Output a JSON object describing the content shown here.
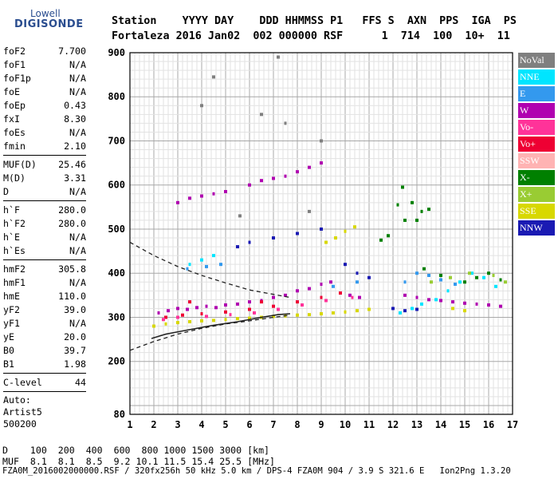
{
  "logo": {
    "line1": "Lowell",
    "line2": "DIGISONDE"
  },
  "header": {
    "line1": "Station    YYYY DAY    DDD HHMMSS P1   FFS S  AXN  PPS  IGA  PS",
    "line2": "Fortaleza 2016 Jan02  002 000000 RSF      1  714  100  10+  11"
  },
  "params": {
    "group1": [
      {
        "label": "foF2",
        "value": "7.700"
      },
      {
        "label": "foF1",
        "value": "N/A"
      },
      {
        "label": "foF1p",
        "value": "N/A"
      },
      {
        "label": "foE",
        "value": "N/A"
      },
      {
        "label": "foEp",
        "value": "0.43"
      },
      {
        "label": "fxI",
        "value": "8.30"
      },
      {
        "label": "foEs",
        "value": "N/A"
      },
      {
        "label": "fmin",
        "value": "2.10"
      }
    ],
    "group2": [
      {
        "label": "MUF(D)",
        "value": "25.46"
      },
      {
        "label": "M(D)",
        "value": "3.31"
      },
      {
        "label": "D",
        "value": "N/A"
      }
    ],
    "group3": [
      {
        "label": "h`F",
        "value": "280.0"
      },
      {
        "label": "h`F2",
        "value": "280.0"
      },
      {
        "label": "h`E",
        "value": "N/A"
      },
      {
        "label": "h`Es",
        "value": "N/A"
      }
    ],
    "group4": [
      {
        "label": "hmF2",
        "value": "305.8"
      },
      {
        "label": "hmF1",
        "value": "N/A"
      },
      {
        "label": "hmE",
        "value": "110.0"
      },
      {
        "label": "yF2",
        "value": "39.0"
      },
      {
        "label": "yF1",
        "value": "N/A"
      },
      {
        "label": "yE",
        "value": "20.0"
      },
      {
        "label": "B0",
        "value": "39.7"
      },
      {
        "label": "B1",
        "value": "1.98"
      }
    ],
    "group5": [
      {
        "label": "C-level",
        "value": "44"
      }
    ],
    "auto": [
      "Auto:",
      "Artist5",
      "500200"
    ]
  },
  "legend": [
    {
      "label": "NoVal",
      "color": "#7f7f7f"
    },
    {
      "label": "NNE",
      "color": "#00e5ff"
    },
    {
      "label": "E",
      "color": "#3399ee"
    },
    {
      "label": "W",
      "color": "#b000b0"
    },
    {
      "label": "Vo-",
      "color": "#ff3399"
    },
    {
      "label": "Vo+",
      "color": "#ee0033"
    },
    {
      "label": "SSW",
      "color": "#ffb3b3"
    },
    {
      "label": "X-",
      "color": "#008000"
    },
    {
      "label": "X+",
      "color": "#99cc33"
    },
    {
      "label": "SSE",
      "color": "#d8d800"
    },
    {
      "label": "NNW",
      "color": "#1a1ab3"
    }
  ],
  "footer": {
    "d_row": "D    100  200  400  600  800 1000 1500 3000 [km]",
    "muf_row": "MUF  8.1  8.1  8.5  9.2 10.1 11.5 15.4 25.5 [MHz]",
    "file_line": "FZA0M_2016002000000.RSF / 320fx256h 50 kHz 5.0 km / DPS-4 FZA0M 904 / 3.9 S 321.6 E   Ion2Png 1.3.20"
  },
  "chart_data": {
    "type": "scatter",
    "xlim": [
      1,
      17
    ],
    "ylim": [
      80,
      900
    ],
    "xticks": [
      1,
      2,
      3,
      4,
      5,
      6,
      7,
      8,
      9,
      10,
      11,
      12,
      13,
      14,
      15,
      16,
      17
    ],
    "yticks": [
      200,
      300,
      400,
      500,
      600,
      700,
      800,
      900
    ],
    "ytick_extra": [
      80
    ],
    "grid": true,
    "series": [
      {
        "name": "W",
        "color": "#b000b0",
        "points": [
          [
            2.2,
            310
          ],
          [
            2.6,
            315
          ],
          [
            3.0,
            320
          ],
          [
            3.4,
            318
          ],
          [
            3.8,
            322
          ],
          [
            4.2,
            325
          ],
          [
            4.6,
            322
          ],
          [
            5.0,
            328
          ],
          [
            5.5,
            330
          ],
          [
            6.0,
            335
          ],
          [
            6.5,
            338
          ],
          [
            7.0,
            345
          ],
          [
            7.5,
            350
          ],
          [
            8.0,
            360
          ],
          [
            8.5,
            365
          ],
          [
            9.0,
            375
          ],
          [
            9.4,
            380
          ],
          [
            3.0,
            560
          ],
          [
            3.5,
            570
          ],
          [
            4.0,
            575
          ],
          [
            4.5,
            580
          ],
          [
            5.0,
            585
          ],
          [
            6.0,
            600
          ],
          [
            6.5,
            610
          ],
          [
            7.0,
            615
          ],
          [
            7.5,
            620
          ],
          [
            8.0,
            630
          ],
          [
            8.5,
            640
          ],
          [
            9.0,
            650
          ],
          [
            12.5,
            350
          ],
          [
            13.0,
            345
          ],
          [
            13.5,
            340
          ],
          [
            14.0,
            338
          ],
          [
            14.5,
            335
          ],
          [
            15.0,
            332
          ],
          [
            15.5,
            330
          ],
          [
            16.0,
            328
          ],
          [
            16.5,
            325
          ],
          [
            10.2,
            350
          ],
          [
            10.6,
            345
          ]
        ]
      },
      {
        "name": "SSE",
        "color": "#d8d800",
        "points": [
          [
            2.0,
            280
          ],
          [
            2.5,
            285
          ],
          [
            3.0,
            288
          ],
          [
            3.5,
            290
          ],
          [
            4.0,
            292
          ],
          [
            4.5,
            293
          ],
          [
            5.0,
            295
          ],
          [
            5.5,
            297
          ],
          [
            6.0,
            298
          ],
          [
            6.5,
            300
          ],
          [
            7.0,
            302
          ],
          [
            7.5,
            303
          ],
          [
            8.0,
            305
          ],
          [
            8.5,
            306
          ],
          [
            9.0,
            308
          ],
          [
            9.5,
            310
          ],
          [
            10.0,
            312
          ],
          [
            10.5,
            315
          ],
          [
            11.0,
            318
          ],
          [
            9.2,
            470
          ],
          [
            9.6,
            480
          ],
          [
            10.0,
            495
          ],
          [
            10.4,
            505
          ],
          [
            14.5,
            320
          ],
          [
            15.0,
            315
          ]
        ]
      },
      {
        "name": "Vo+",
        "color": "#ee0033",
        "points": [
          [
            2.5,
            300
          ],
          [
            3.2,
            305
          ],
          [
            4.0,
            308
          ],
          [
            5.0,
            312
          ],
          [
            6.0,
            318
          ],
          [
            7.0,
            325
          ],
          [
            8.0,
            335
          ],
          [
            9.0,
            345
          ],
          [
            9.8,
            355
          ],
          [
            3.5,
            335
          ],
          [
            6.5,
            335
          ]
        ]
      },
      {
        "name": "Vo-",
        "color": "#ff3399",
        "points": [
          [
            2.4,
            295
          ],
          [
            3.0,
            300
          ],
          [
            4.2,
            302
          ],
          [
            5.2,
            306
          ],
          [
            6.2,
            310
          ],
          [
            7.2,
            318
          ],
          [
            8.2,
            328
          ],
          [
            9.2,
            338
          ],
          [
            10.3,
            345
          ]
        ]
      },
      {
        "name": "NNE",
        "color": "#00e5ff",
        "points": [
          [
            12.3,
            310
          ],
          [
            12.8,
            320
          ],
          [
            13.2,
            330
          ],
          [
            13.8,
            340
          ],
          [
            14.3,
            360
          ],
          [
            14.8,
            380
          ],
          [
            15.3,
            400
          ],
          [
            15.8,
            390
          ],
          [
            16.3,
            370
          ],
          [
            3.5,
            420
          ],
          [
            4.0,
            430
          ],
          [
            4.5,
            440
          ]
        ]
      },
      {
        "name": "E",
        "color": "#3399ee",
        "points": [
          [
            12.5,
            380
          ],
          [
            13.0,
            400
          ],
          [
            13.5,
            395
          ],
          [
            14.0,
            385
          ],
          [
            14.6,
            375
          ],
          [
            3.4,
            410
          ],
          [
            4.2,
            415
          ],
          [
            4.8,
            420
          ],
          [
            9.5,
            370
          ],
          [
            10.5,
            380
          ]
        ]
      },
      {
        "name": "NNW",
        "color": "#1a1ab3",
        "points": [
          [
            5.5,
            460
          ],
          [
            6.0,
            470
          ],
          [
            7.0,
            480
          ],
          [
            8.0,
            490
          ],
          [
            9.0,
            500
          ],
          [
            10.0,
            420
          ],
          [
            10.5,
            400
          ],
          [
            11.0,
            390
          ],
          [
            12.0,
            320
          ],
          [
            12.5,
            315
          ],
          [
            13.0,
            318
          ]
        ]
      },
      {
        "name": "X-",
        "color": "#008000",
        "points": [
          [
            11.5,
            475
          ],
          [
            11.8,
            485
          ],
          [
            12.2,
            555
          ],
          [
            12.4,
            595
          ],
          [
            12.5,
            520
          ],
          [
            12.8,
            560
          ],
          [
            13.0,
            520
          ],
          [
            13.2,
            540
          ],
          [
            13.5,
            545
          ],
          [
            15.0,
            380
          ],
          [
            15.5,
            390
          ],
          [
            16.0,
            400
          ],
          [
            16.5,
            385
          ],
          [
            14.0,
            395
          ],
          [
            13.3,
            410
          ]
        ]
      },
      {
        "name": "X+",
        "color": "#99cc33",
        "points": [
          [
            13.6,
            380
          ],
          [
            14.4,
            390
          ],
          [
            15.2,
            400
          ],
          [
            16.2,
            395
          ],
          [
            16.7,
            380
          ]
        ]
      },
      {
        "name": "NoVal",
        "color": "#7f7f7f",
        "points": [
          [
            7.2,
            890
          ],
          [
            4.5,
            845
          ],
          [
            4.0,
            780
          ],
          [
            6.5,
            760
          ],
          [
            7.5,
            740
          ],
          [
            9.0,
            700
          ],
          [
            5.6,
            530
          ],
          [
            8.5,
            540
          ]
        ]
      }
    ],
    "profile_curve": [
      [
        1.9,
        252
      ],
      [
        2.5,
        262
      ],
      [
        3.5,
        272
      ],
      [
        4.5,
        282
      ],
      [
        5.5,
        290
      ],
      [
        6.5,
        300
      ],
      [
        7.2,
        306
      ],
      [
        7.7,
        308
      ]
    ],
    "dashed_upper": [
      [
        1.0,
        470
      ],
      [
        2.0,
        440
      ],
      [
        3.0,
        415
      ],
      [
        4.0,
        395
      ],
      [
        5.0,
        378
      ],
      [
        6.0,
        362
      ],
      [
        7.0,
        352
      ],
      [
        7.7,
        345
      ]
    ],
    "dashed_lower": [
      [
        1.0,
        225
      ],
      [
        2.0,
        245
      ],
      [
        3.0,
        262
      ],
      [
        4.0,
        275
      ],
      [
        5.0,
        285
      ],
      [
        6.0,
        292
      ],
      [
        7.0,
        300
      ],
      [
        7.7,
        305
      ]
    ]
  }
}
